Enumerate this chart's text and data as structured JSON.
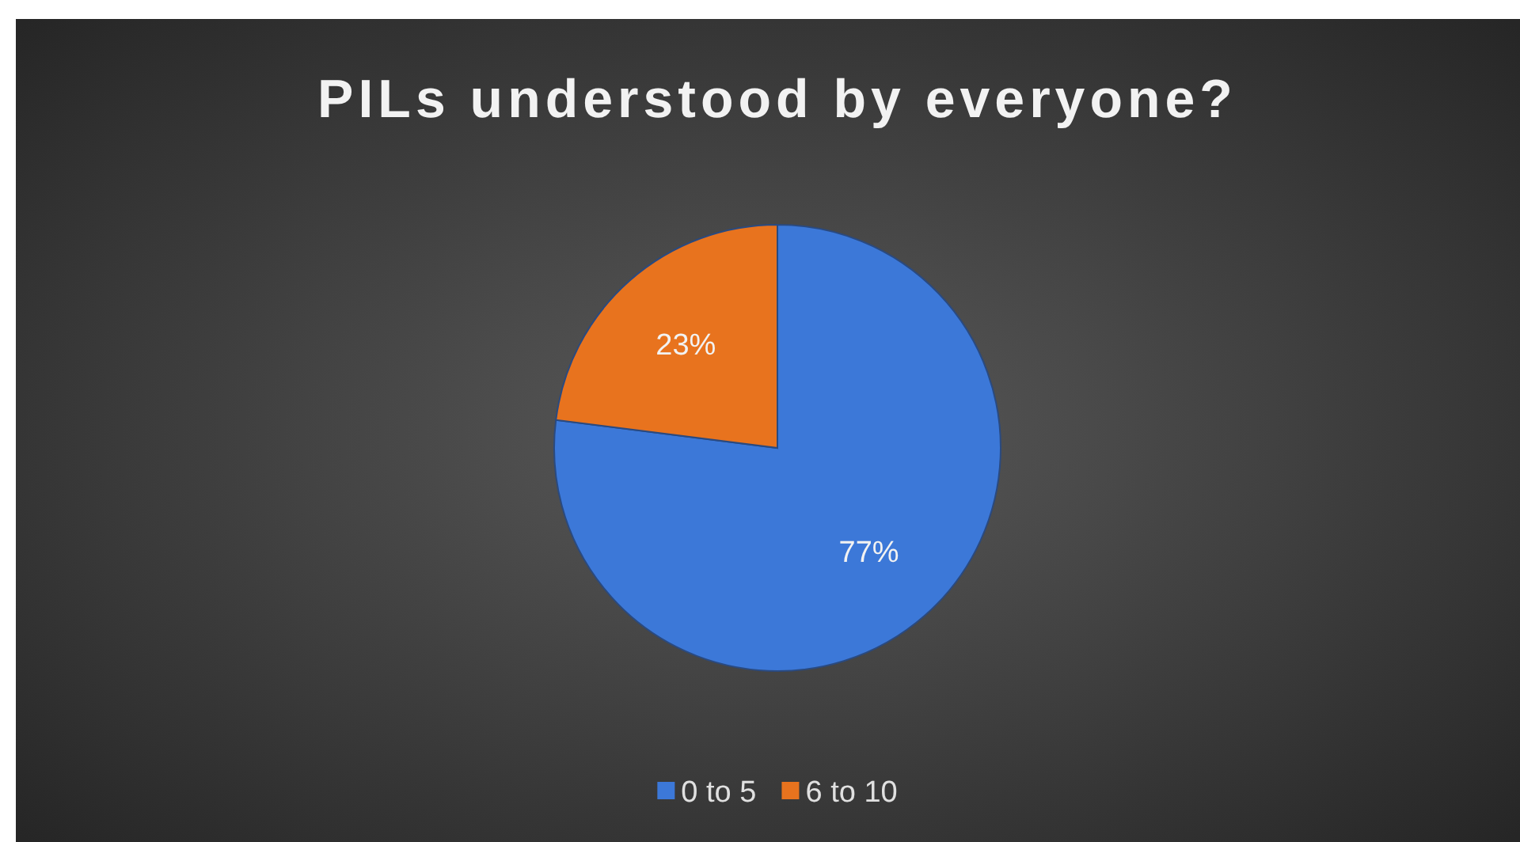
{
  "chart_data": {
    "type": "pie",
    "title": "PILs understood by everyone?",
    "categories": [
      "0 to 5",
      "6 to 10"
    ],
    "values": [
      77,
      23
    ],
    "colors": [
      "#3c78d8",
      "#e8731e"
    ],
    "value_labels": [
      "77%",
      "23%"
    ],
    "legend": "bottom"
  }
}
